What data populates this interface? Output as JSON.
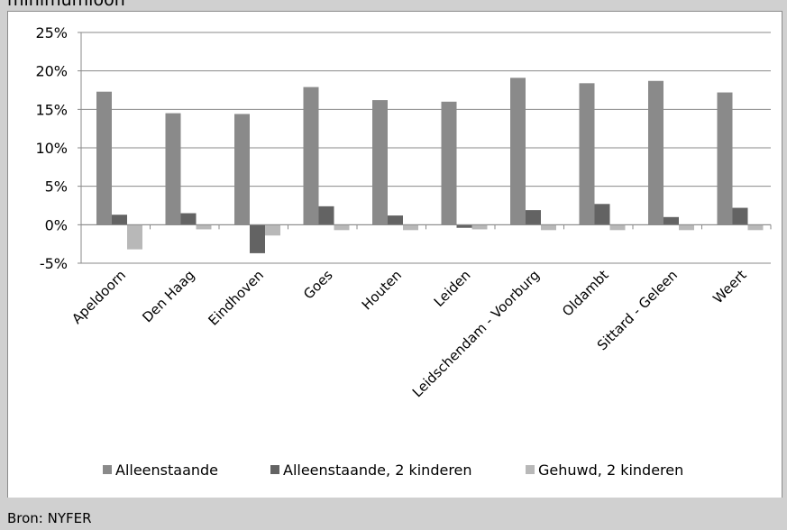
{
  "header": {
    "title_fragment": "minimumloon"
  },
  "footer": {
    "source": "Bron: NYFER"
  },
  "colors": {
    "series1": "#8a8a8a",
    "series2": "#636363",
    "series3": "#b8b8b8",
    "grid": "#8a8a8a",
    "axis": "#8a8a8a"
  },
  "chart_data": {
    "type": "bar",
    "categories": [
      "Apeldoorn",
      "Den Haag",
      "Eindhoven",
      "Goes",
      "Houten",
      "Leiden",
      "Leidschendam - Voorburg",
      "Oldambt",
      "Sittard - Geleen",
      "Weert"
    ],
    "series": [
      {
        "name": "Alleenstaande",
        "values": [
          0.173,
          0.145,
          0.144,
          0.179,
          0.162,
          0.16,
          0.191,
          0.184,
          0.187,
          0.172
        ]
      },
      {
        "name": "Alleenstaande, 2 kinderen",
        "values": [
          0.013,
          0.015,
          -0.037,
          0.024,
          0.012,
          -0.004,
          0.019,
          0.027,
          0.01,
          0.022
        ]
      },
      {
        "name": "Gehuwd, 2 kinderen",
        "values": [
          -0.032,
          -0.006,
          -0.014,
          -0.007,
          -0.007,
          -0.006,
          -0.007,
          -0.007,
          -0.007,
          -0.007
        ]
      }
    ],
    "yticks": [
      "25%",
      "20%",
      "15%",
      "10%",
      "5%",
      "0%",
      "-5%"
    ],
    "ytick_values": [
      0.25,
      0.2,
      0.15,
      0.1,
      0.05,
      0.0,
      -0.05
    ],
    "ylim": [
      -0.05,
      0.25
    ],
    "grid": true,
    "legend": "bottom"
  }
}
